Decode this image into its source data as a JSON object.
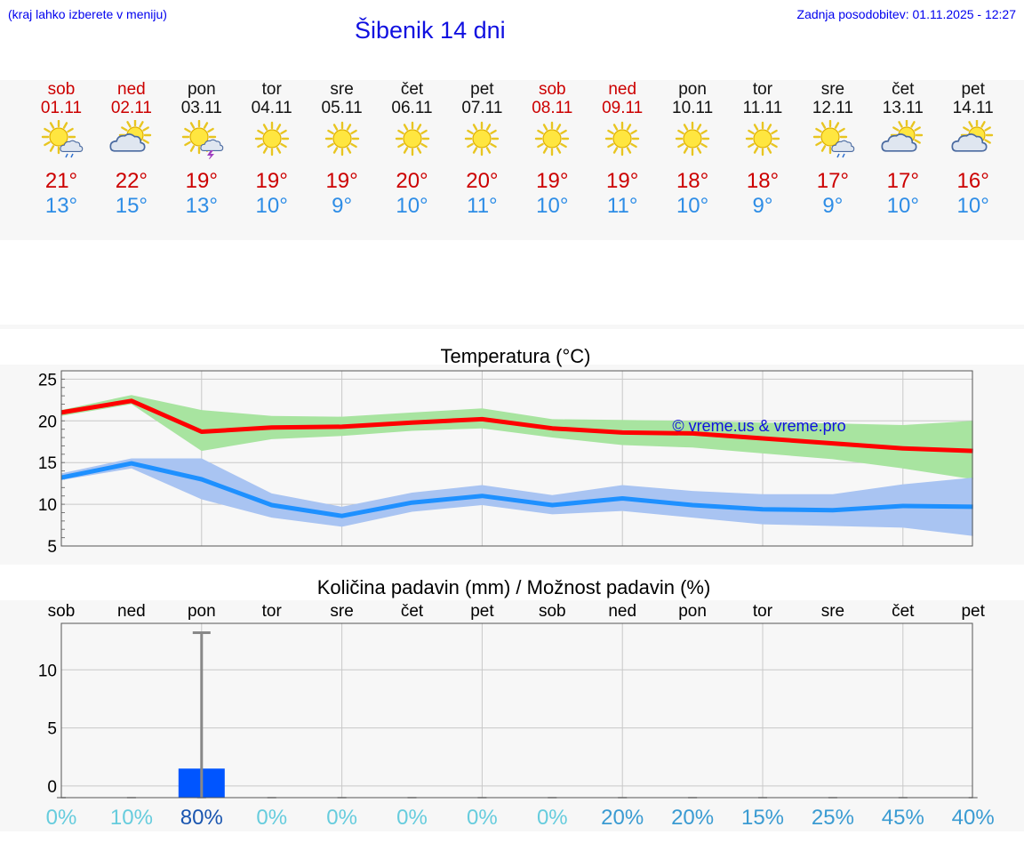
{
  "header": {
    "hint": "(kraj lahko izberete v meniju)",
    "title": "Šibenik 14 dni",
    "updated": "Zadnja posodobitev: 01.11.2025 - 12:27"
  },
  "colors": {
    "weekend": "#cc0000",
    "max": "#cc0000",
    "min": "#2e8de6",
    "maxLine": "#ff0000",
    "minLine": "#1e90ff",
    "maxBand": "#a8e4a0",
    "minBand": "#a9c4f2",
    "rainBar": "#0055ff"
  },
  "days": [
    {
      "name": "sob",
      "date": "01.11",
      "weekend": true,
      "icon": "sun-cloud-rain-icon",
      "max": "21°",
      "min": "13°"
    },
    {
      "name": "ned",
      "date": "02.11",
      "weekend": true,
      "icon": "cloudy-sun-icon",
      "max": "22°",
      "min": "15°"
    },
    {
      "name": "pon",
      "date": "03.11",
      "weekend": false,
      "icon": "sun-thunderstorm-icon",
      "max": "19°",
      "min": "13°"
    },
    {
      "name": "tor",
      "date": "04.11",
      "weekend": false,
      "icon": "sun-icon",
      "max": "19°",
      "min": "10°"
    },
    {
      "name": "sre",
      "date": "05.11",
      "weekend": false,
      "icon": "sun-icon",
      "max": "19°",
      "min": "9°"
    },
    {
      "name": "čet",
      "date": "06.11",
      "weekend": false,
      "icon": "sun-icon",
      "max": "20°",
      "min": "10°"
    },
    {
      "name": "pet",
      "date": "07.11",
      "weekend": false,
      "icon": "sun-icon",
      "max": "20°",
      "min": "11°"
    },
    {
      "name": "sob",
      "date": "08.11",
      "weekend": true,
      "icon": "sun-icon",
      "max": "19°",
      "min": "10°"
    },
    {
      "name": "ned",
      "date": "09.11",
      "weekend": true,
      "icon": "sun-icon",
      "max": "19°",
      "min": "11°"
    },
    {
      "name": "pon",
      "date": "10.11",
      "weekend": false,
      "icon": "sun-icon",
      "max": "18°",
      "min": "10°"
    },
    {
      "name": "tor",
      "date": "11.11",
      "weekend": false,
      "icon": "sun-icon",
      "max": "18°",
      "min": "9°"
    },
    {
      "name": "sre",
      "date": "12.11",
      "weekend": false,
      "icon": "sun-cloud-rain-icon",
      "max": "17°",
      "min": "9°"
    },
    {
      "name": "čet",
      "date": "13.11",
      "weekend": false,
      "icon": "cloudy-sun-icon",
      "max": "17°",
      "min": "10°"
    },
    {
      "name": "pet",
      "date": "14.11",
      "weekend": false,
      "icon": "cloudy-sun-icon",
      "max": "16°",
      "min": "10°"
    }
  ],
  "chart_data": [
    {
      "type": "line",
      "title": "Temperatura (°C)",
      "watermark": "© vreme.us & vreme.pro",
      "ylim": [
        5,
        26
      ],
      "yticks": [
        5,
        10,
        15,
        20,
        25
      ],
      "x": [
        0,
        1,
        2,
        3,
        4,
        5,
        6,
        7,
        8,
        9,
        10,
        11,
        12,
        13
      ],
      "series": [
        {
          "name": "max",
          "values": [
            21.0,
            22.4,
            18.7,
            19.2,
            19.3,
            19.8,
            20.2,
            19.1,
            18.6,
            18.5,
            17.9,
            17.3,
            16.7,
            16.4
          ],
          "band_low": [
            20.6,
            22.0,
            16.4,
            17.8,
            18.2,
            18.8,
            19.1,
            18.0,
            17.1,
            16.8,
            16.1,
            15.4,
            14.3,
            13.0
          ],
          "band_high": [
            21.3,
            23.1,
            21.3,
            20.6,
            20.5,
            21.0,
            21.5,
            20.2,
            20.1,
            20.0,
            19.8,
            19.7,
            19.5,
            20.0
          ]
        },
        {
          "name": "min",
          "values": [
            13.2,
            14.9,
            13.0,
            9.9,
            8.6,
            10.2,
            11.0,
            9.9,
            10.7,
            9.9,
            9.4,
            9.3,
            9.8,
            9.7
          ],
          "band_low": [
            12.9,
            14.3,
            10.6,
            8.4,
            7.3,
            9.1,
            9.9,
            8.8,
            9.2,
            8.4,
            7.6,
            7.4,
            7.2,
            6.2
          ],
          "band_high": [
            13.7,
            15.5,
            15.5,
            11.3,
            9.7,
            11.4,
            12.3,
            11.1,
            12.3,
            11.6,
            11.2,
            11.2,
            12.4,
            13.2
          ]
        }
      ]
    },
    {
      "type": "bar",
      "title": "Količina padavin (mm) / Možnost padavin (%)",
      "categories": [
        "sob",
        "ned",
        "pon",
        "tor",
        "sre",
        "čet",
        "pet",
        "sob",
        "ned",
        "pon",
        "tor",
        "sre",
        "čet",
        "pet"
      ],
      "values": [
        0,
        0,
        1.5,
        0,
        0,
        0,
        0,
        0,
        0,
        0,
        0,
        0,
        0,
        0
      ],
      "error_high": [
        0,
        0,
        13.2,
        0,
        0,
        0,
        0,
        0,
        0,
        0,
        0,
        0,
        0,
        0
      ],
      "probability": [
        "0%",
        "10%",
        "80%",
        "0%",
        "0%",
        "0%",
        "0%",
        "0%",
        "20%",
        "20%",
        "15%",
        "25%",
        "45%",
        "40%"
      ],
      "probability_colors": [
        "#66ccdd",
        "#66ccdd",
        "#1a56b0",
        "#66ccdd",
        "#66ccdd",
        "#66ccdd",
        "#66ccdd",
        "#66ccdd",
        "#3a9bd2",
        "#3a9bd2",
        "#3a9bd2",
        "#3a9bd2",
        "#3a9bd2",
        "#3a9bd2"
      ],
      "ylim": [
        -1,
        14
      ],
      "yticks": [
        0,
        5,
        10
      ]
    }
  ]
}
